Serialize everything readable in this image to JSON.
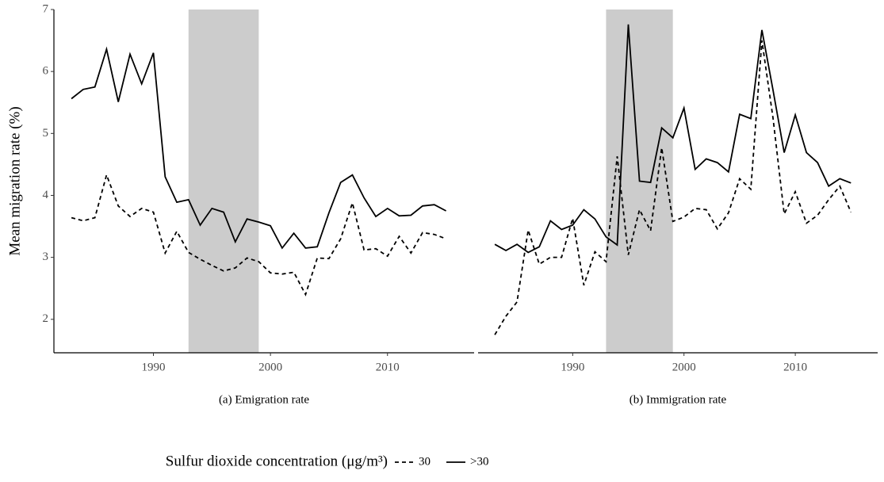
{
  "chart_data": [
    {
      "type": "line",
      "y_label": "Mean migration rate (%)",
      "caption": "(a) Emigration rate",
      "x": [
        1983,
        1984,
        1985,
        1986,
        1987,
        1988,
        1989,
        1990,
        1991,
        1992,
        1993,
        1994,
        1995,
        1996,
        1997,
        1998,
        1999,
        2000,
        2001,
        2002,
        2003,
        2004,
        2005,
        2006,
        2007,
        2008,
        2009,
        2010,
        2011,
        2012,
        2013,
        2014,
        2015
      ],
      "xlim": [
        1981.5,
        2017.4
      ],
      "ylim": [
        1.46,
        7.0
      ],
      "xticks": [
        1990,
        2000,
        2010
      ],
      "yticks": [
        2,
        3,
        4,
        5,
        6,
        7
      ],
      "shade": [
        1993,
        1999
      ],
      "shade_color": "#cccccc",
      "series": [
        {
          "name": "30",
          "color": "#000000",
          "linestyle": "dashed",
          "values": [
            3.64,
            3.59,
            3.64,
            4.33,
            3.83,
            3.66,
            3.79,
            3.73,
            3.07,
            3.42,
            3.08,
            2.97,
            2.87,
            2.78,
            2.83,
            2.99,
            2.93,
            2.75,
            2.73,
            2.76,
            2.4,
            2.99,
            2.98,
            3.3,
            3.88,
            3.12,
            3.14,
            3.02,
            3.34,
            3.07,
            3.4,
            3.37,
            3.3
          ]
        },
        {
          "name": ">30",
          "color": "#000000",
          "linestyle": "solid",
          "values": [
            5.56,
            5.71,
            5.75,
            6.36,
            5.51,
            6.28,
            5.8,
            6.3,
            4.3,
            3.89,
            3.93,
            3.52,
            3.79,
            3.73,
            3.25,
            3.62,
            3.57,
            3.51,
            3.15,
            3.39,
            3.15,
            3.17,
            3.72,
            4.21,
            4.33,
            3.96,
            3.66,
            3.79,
            3.67,
            3.68,
            3.83,
            3.85,
            3.75
          ]
        }
      ]
    },
    {
      "type": "line",
      "caption": "(b) Immigration rate",
      "x": [
        1983,
        1984,
        1985,
        1986,
        1987,
        1988,
        1989,
        1990,
        1991,
        1992,
        1993,
        1994,
        1995,
        1996,
        1997,
        1998,
        1999,
        2000,
        2001,
        2002,
        2003,
        2004,
        2005,
        2006,
        2007,
        2008,
        2009,
        2010,
        2011,
        2012,
        2013,
        2014,
        2015
      ],
      "xlim": [
        1981.5,
        2017.4
      ],
      "ylim": [
        1.46,
        7.0
      ],
      "xticks": [
        1990,
        2000,
        2010
      ],
      "shade": [
        1993,
        1999
      ],
      "shade_color": "#cccccc",
      "series": [
        {
          "color": "#000000",
          "linestyle": "dashed",
          "values": [
            1.75,
            2.05,
            2.28,
            3.44,
            2.89,
            3.0,
            3.0,
            3.63,
            2.55,
            3.09,
            2.93,
            4.63,
            3.04,
            3.77,
            3.43,
            4.77,
            3.58,
            3.65,
            3.79,
            3.77,
            3.46,
            3.72,
            4.27,
            4.1,
            6.5,
            5.25,
            3.7,
            4.06,
            3.55,
            3.68,
            3.93,
            4.15,
            3.73
          ]
        },
        {
          "color": "#000000",
          "linestyle": "solid",
          "values": [
            3.21,
            3.11,
            3.21,
            3.08,
            3.17,
            3.59,
            3.45,
            3.52,
            3.77,
            3.62,
            3.33,
            3.2,
            6.76,
            4.23,
            4.21,
            5.09,
            4.93,
            5.41,
            4.42,
            4.59,
            4.53,
            4.38,
            5.31,
            5.24,
            6.67,
            5.7,
            4.69,
            5.3,
            4.69,
            4.53,
            4.15,
            4.27,
            4.2
          ]
        }
      ]
    }
  ],
  "legend": {
    "title": "Sulfur dioxide concentration (μg/m³)"
  }
}
